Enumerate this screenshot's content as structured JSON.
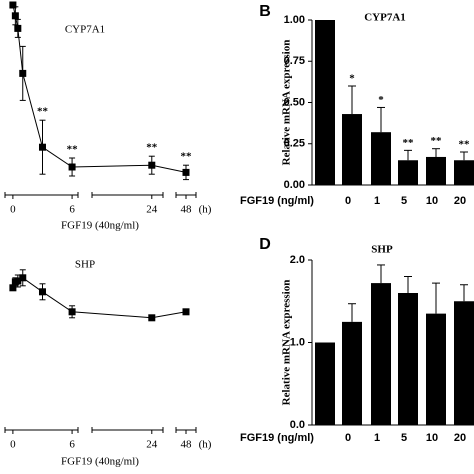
{
  "chart_data": [
    {
      "type": "line",
      "title": "CYP7A1",
      "xlabel": "FGF19 (40ng/ml)",
      "xunit": "(h)",
      "x": [
        0,
        0.25,
        0.5,
        1,
        3,
        6,
        24,
        48
      ],
      "values": [
        1.0,
        0.94,
        0.87,
        0.62,
        0.21,
        0.1,
        0.11,
        0.07
      ],
      "errors": [
        0,
        0.05,
        0.05,
        0.15,
        0.15,
        0.05,
        0.05,
        0.04
      ],
      "annotations": [
        null,
        null,
        null,
        null,
        "**",
        "**",
        "**",
        "**"
      ],
      "ylim": [
        0,
        1
      ],
      "xlim": [
        [
          -0.8,
          6.6
        ],
        [
          16,
          25.5
        ],
        [
          46,
          50
        ]
      ],
      "xticks": [
        0,
        6,
        24,
        48
      ],
      "color": "#000000"
    },
    {
      "type": "bar",
      "panel": "B",
      "title": "CYP7A1",
      "xlabel": "FGF19 (ng/ml)",
      "ylabel": "Relative mRNA expression",
      "categories": [
        null,
        "0",
        "1",
        "5",
        "10",
        "20"
      ],
      "values": [
        1.0,
        0.43,
        0.32,
        0.15,
        0.17,
        0.15
      ],
      "errors": [
        0,
        0.17,
        0.15,
        0.06,
        0.05,
        0.05
      ],
      "annotations": [
        null,
        "*",
        "*",
        "**",
        "**",
        "**"
      ],
      "ylim": [
        0,
        1
      ],
      "yticks": [
        {
          "value": 0,
          "label": "0.00"
        },
        {
          "value": 0.25,
          "label": "0.25"
        },
        {
          "value": 0.5,
          "label": "0.50"
        },
        {
          "value": 0.75,
          "label": "0.75"
        },
        {
          "value": 1,
          "label": "1.00"
        }
      ],
      "color": "#000000"
    },
    {
      "type": "line",
      "title": "SHP",
      "xlabel": "FGF19 (40ng/ml)",
      "xunit": "(h)",
      "x": [
        0,
        0.25,
        0.5,
        1,
        3,
        6,
        24,
        48
      ],
      "values": [
        1.18,
        1.33,
        1.35,
        1.43,
        1.08,
        0.58,
        0.43,
        0.58
      ],
      "errors": [
        0,
        0.1,
        0.15,
        0.2,
        0.2,
        0.15,
        0.05,
        0
      ],
      "annotations": [
        null,
        null,
        null,
        null,
        null,
        null,
        null,
        null
      ],
      "ylim": [
        0,
        2
      ],
      "xlim": [
        [
          -0.8,
          6.6
        ],
        [
          16,
          25.5
        ],
        [
          46,
          50
        ]
      ],
      "xticks": [
        0,
        6,
        24,
        48
      ],
      "color": "#000000"
    },
    {
      "type": "bar",
      "panel": "D",
      "title": "SHP",
      "xlabel": "FGF19 (ng/ml)",
      "ylabel": "Relative mRNA expression",
      "categories": [
        null,
        "0",
        "1",
        "5",
        "10",
        "20"
      ],
      "values": [
        1.0,
        1.25,
        1.72,
        1.6,
        1.35,
        1.5
      ],
      "errors": [
        0,
        0.22,
        0.22,
        0.2,
        0.37,
        0.2
      ],
      "annotations": [
        null,
        null,
        null,
        null,
        null,
        null
      ],
      "ylim": [
        0,
        2
      ],
      "yticks": [
        {
          "value": 0,
          "label": "0.0"
        },
        {
          "value": 1,
          "label": "1.0"
        },
        {
          "value": 2,
          "label": "2.0"
        }
      ],
      "color": "#000000"
    }
  ]
}
